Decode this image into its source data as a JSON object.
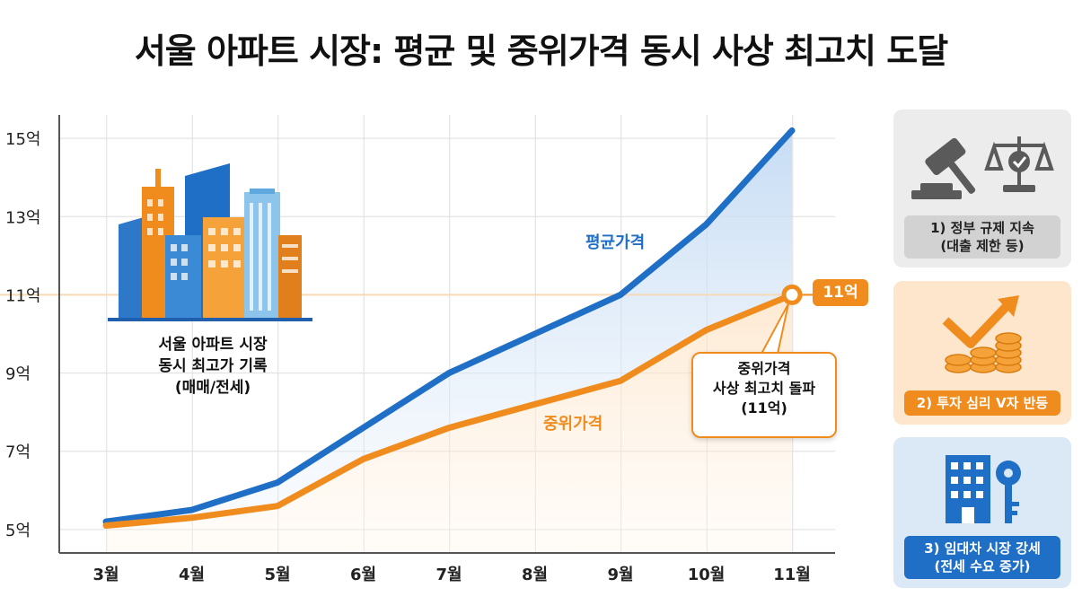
{
  "title": "서울 아파트 시장: 평균 및 중위가격 동시 사상 최고치 도달",
  "colors": {
    "avg": "#1f6fc6",
    "median": "#f08c1e",
    "grid": "#dddddd",
    "refline": "#f6d9b5"
  },
  "chart_data": {
    "type": "line",
    "title": "서울 아파트 시장: 평균 및 중위가격 동시 사상 최고치 도달",
    "categories": [
      "3월",
      "4월",
      "5월",
      "6월",
      "7월",
      "8월",
      "9월",
      "10월",
      "11월"
    ],
    "yticks": [
      "5억",
      "7억",
      "9억",
      "11억",
      "13억",
      "15억"
    ],
    "ytick_values": [
      5,
      7,
      9,
      11,
      13,
      15
    ],
    "ylim": [
      4.4,
      15.6
    ],
    "series": [
      {
        "name": "평균가격",
        "values": [
          5.2,
          5.5,
          6.2,
          7.6,
          9.0,
          10.0,
          11.0,
          12.8,
          15.2
        ]
      },
      {
        "name": "중위가격",
        "values": [
          5.1,
          5.3,
          5.6,
          6.8,
          7.6,
          8.2,
          8.8,
          10.1,
          11.0
        ]
      }
    ],
    "reference_line": 11
  },
  "labels": {
    "avg_series": "평균가격",
    "median_series": "중위가격",
    "badge": "11억",
    "callout": [
      "중위가격",
      "사상 최고치 돌파",
      "(11억)"
    ],
    "buildings_caption": [
      "서울 아파트 시장",
      "동시 최고가 기록",
      "(매매/전세)"
    ]
  },
  "side_cards": [
    {
      "caption": [
        "1) 정부 규제 지속",
        "(대출 제한 등)"
      ],
      "icon": "gavel-and-scale-icon"
    },
    {
      "caption": [
        "2) 투자 심리 V자 반등"
      ],
      "icon": "checkmark-coins-icon"
    },
    {
      "caption": [
        "3) 임대차 시장 강세",
        "(전세 수요 증가)"
      ],
      "icon": "building-key-icon"
    }
  ]
}
